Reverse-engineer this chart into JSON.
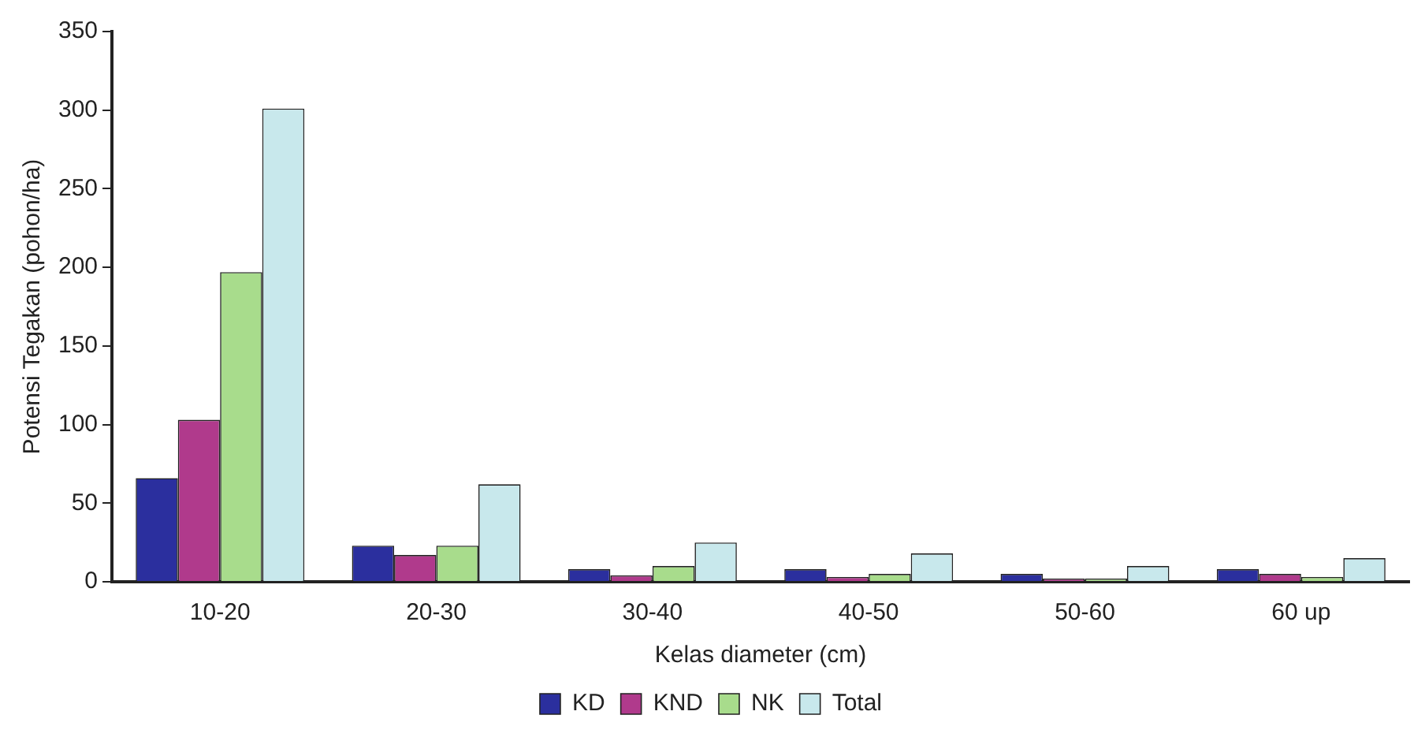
{
  "chart_data": {
    "type": "bar",
    "xlabel": "Kelas diameter (cm)",
    "ylabel": "Potensi Tegakan (pohon/ha)",
    "categories": [
      "10-20",
      "20-30",
      "30-40",
      "40-50",
      "50-60",
      "60 up"
    ],
    "series": [
      {
        "name": "KD",
        "color": "#2b2f9e",
        "values": [
          66,
          23,
          8,
          8,
          5,
          8
        ]
      },
      {
        "name": "KND",
        "color": "#b03a8c",
        "values": [
          103,
          17,
          4,
          3,
          2,
          5
        ]
      },
      {
        "name": "NK",
        "color": "#a8dc8c",
        "values": [
          197,
          23,
          10,
          5,
          2,
          3
        ]
      },
      {
        "name": "Total",
        "color": "#c8e8ec",
        "values": [
          301,
          62,
          25,
          18,
          10,
          15
        ]
      }
    ],
    "ylim": [
      0,
      350
    ],
    "yticks": [
      0,
      50,
      100,
      150,
      200,
      250,
      300,
      350
    ],
    "grid": false,
    "legend": "bottom"
  }
}
